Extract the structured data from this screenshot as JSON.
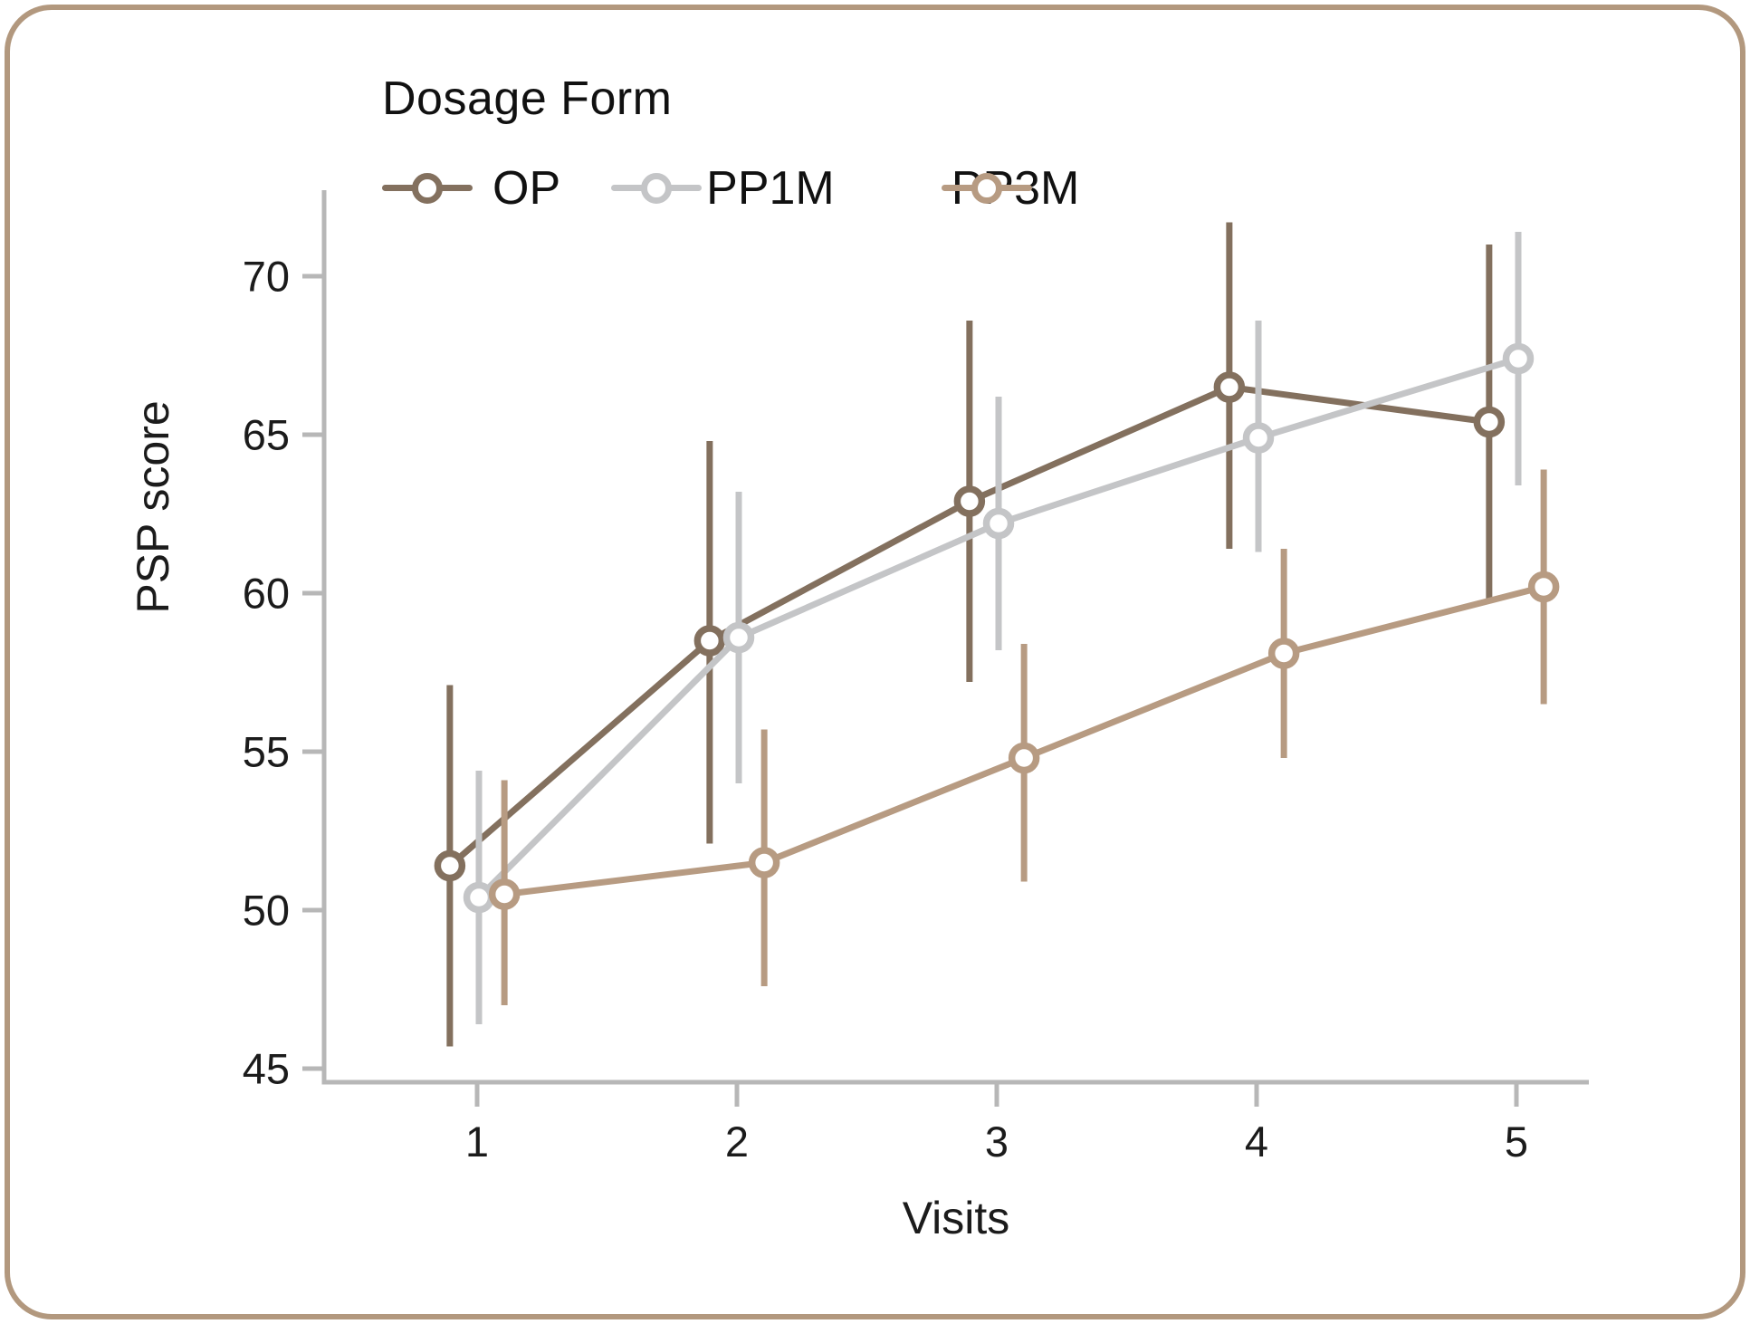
{
  "figure": {
    "border_color": "#b2987e",
    "background_color": "#ffffff",
    "text_color": "#1b1b1b",
    "axis_color": "#b7b7b7"
  },
  "legend": {
    "title": "Dosage Form",
    "items": [
      {
        "label": "OP",
        "color": "#83705e"
      },
      {
        "label": "PP1M",
        "color": "#c4c5c7"
      },
      {
        "label": "PP3M",
        "color": "#b79b82"
      }
    ]
  },
  "chart_data": {
    "type": "line",
    "title": "",
    "xlabel": "Visits",
    "ylabel": "PSP score",
    "x_ticks": [
      1,
      2,
      3,
      4,
      5
    ],
    "y_ticks": [
      45,
      50,
      55,
      60,
      65,
      70
    ],
    "xlim": [
      0.4,
      5.3
    ],
    "ylim": [
      44.5,
      73
    ],
    "grid": false,
    "error_bars": true,
    "legend_position": "top-left",
    "marker": "open-circle",
    "x": [
      1,
      2,
      3,
      4,
      5
    ],
    "series": [
      {
        "name": "OP",
        "color": "#83705e",
        "x_offset": -0.105,
        "values": [
          51.4,
          58.5,
          62.9,
          66.5,
          65.4
        ],
        "err_low": [
          45.7,
          52.1,
          57.2,
          61.4,
          59.7
        ],
        "err_high": [
          57.1,
          64.8,
          68.6,
          71.7,
          71.0
        ]
      },
      {
        "name": "PP1M",
        "color": "#c4c5c7",
        "x_offset": 0.007,
        "values": [
          50.4,
          58.6,
          62.2,
          64.9,
          67.4
        ],
        "err_low": [
          46.4,
          54.0,
          58.2,
          61.3,
          63.4
        ],
        "err_high": [
          54.4,
          63.2,
          66.2,
          68.6,
          71.4
        ]
      },
      {
        "name": "PP3M",
        "color": "#b79b82",
        "x_offset": 0.105,
        "values": [
          50.5,
          51.5,
          54.8,
          58.1,
          60.2
        ],
        "err_low": [
          47.0,
          47.6,
          50.9,
          54.8,
          56.5
        ],
        "err_high": [
          54.1,
          55.7,
          58.4,
          61.4,
          63.9
        ]
      }
    ]
  }
}
